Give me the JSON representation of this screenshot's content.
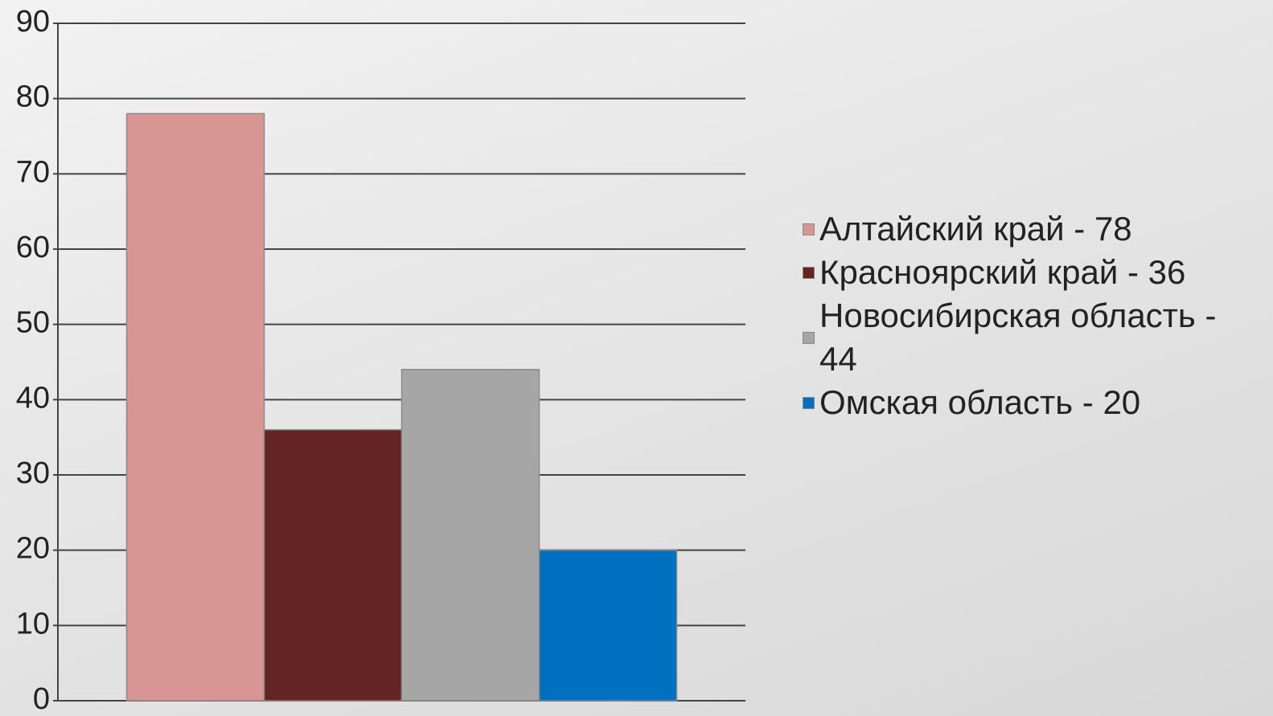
{
  "chart_data": {
    "type": "bar",
    "categories": [
      null
    ],
    "series": [
      {
        "name": "Алтайский край - 78",
        "color": "#d99594",
        "values": [
          78
        ]
      },
      {
        "name": "Красноярский край - 36",
        "color": "#632423",
        "values": [
          36
        ]
      },
      {
        "name": "Новосибирская область - 44",
        "color": "#a6a6a6",
        "values": [
          44
        ]
      },
      {
        "name": "Омская область - 20",
        "color": "#0070c0",
        "values": [
          20
        ]
      }
    ],
    "ylim": [
      0,
      90
    ],
    "yticks": [
      0,
      10,
      20,
      30,
      40,
      50,
      60,
      70,
      80,
      90
    ],
    "grid": true,
    "legend": "right"
  }
}
